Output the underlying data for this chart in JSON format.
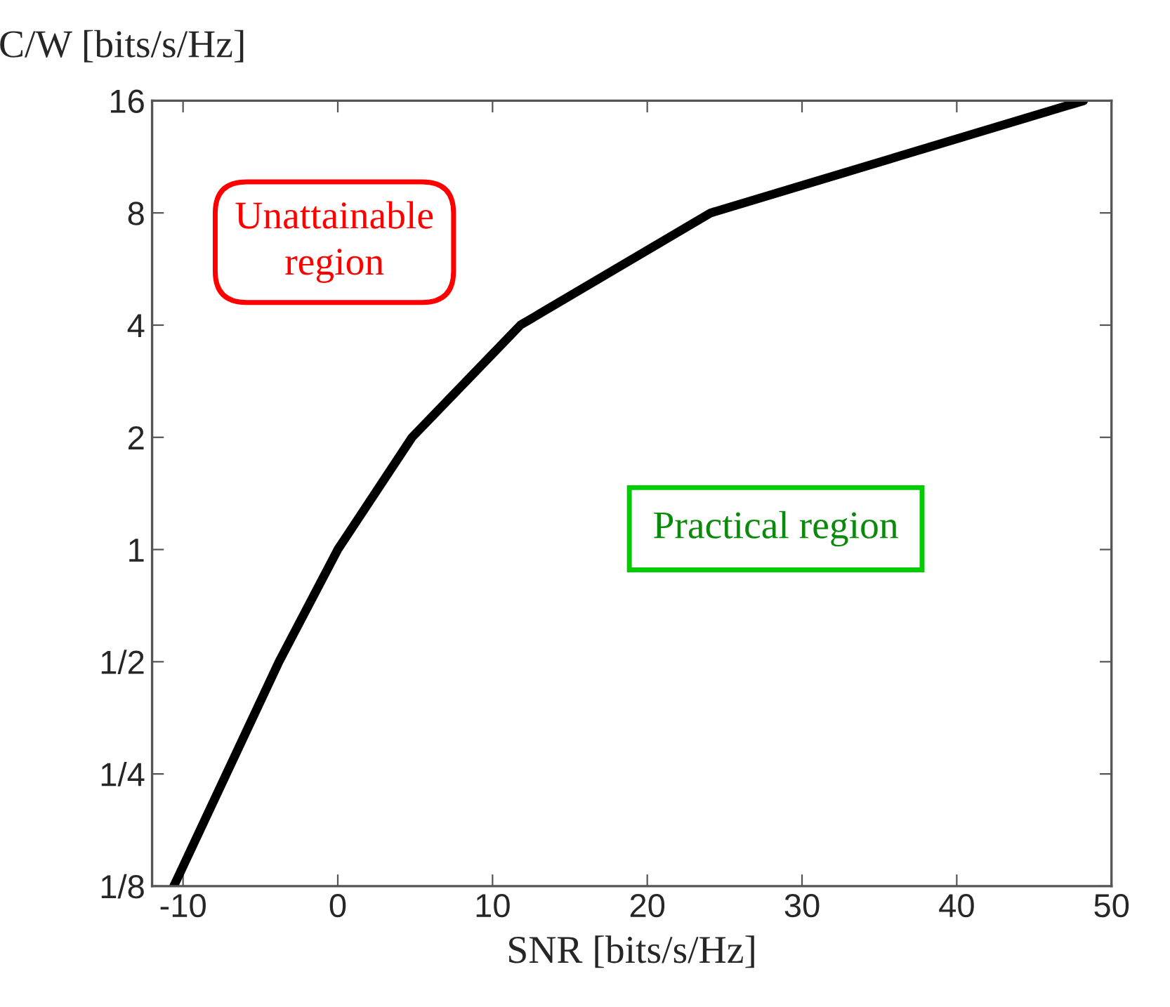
{
  "chart_data": {
    "type": "line",
    "xlabel": "SNR [bits/s/Hz]",
    "ylabel": "C/W [bits/s/Hz]",
    "x": [
      -10.6,
      -7.2,
      -3.8,
      0,
      4.8,
      11.8,
      24.1,
      48.2
    ],
    "series": [
      {
        "color": "#000000",
        "values": [
          0.125,
          0.25,
          0.5,
          1,
          2,
          4,
          8,
          16
        ]
      }
    ],
    "log": "y",
    "xlim": [
      -12,
      50
    ],
    "xticks": [
      -10,
      0,
      10,
      20,
      30,
      40,
      50
    ],
    "ylim": [
      0.125,
      16
    ],
    "yticks": [
      {
        "value": 0.125,
        "label": "1/8"
      },
      {
        "value": 0.25,
        "label": "1/4"
      },
      {
        "value": 0.5,
        "label": "1/2"
      },
      1,
      2,
      4,
      8,
      16
    ],
    "annotations": [
      "Unattainable\nregion",
      "Practical region"
    ],
    "grid": false,
    "marker": "none",
    "line_style": "solid"
  }
}
